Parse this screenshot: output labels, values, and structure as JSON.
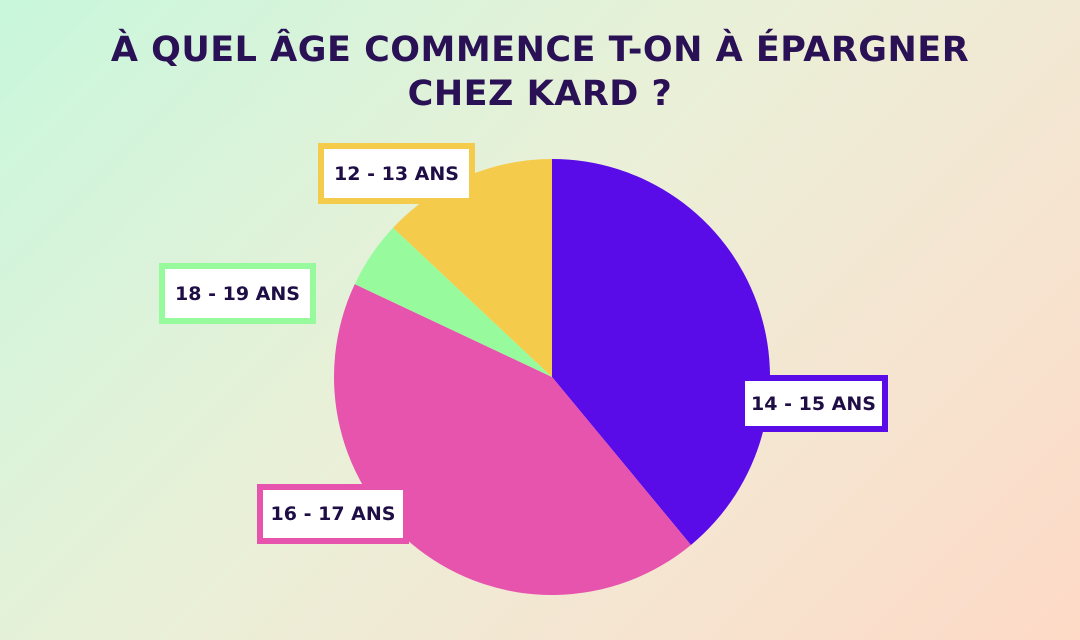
{
  "title": {
    "line1": "À QUEL ÂGE COMMENCE T-ON À ÉPARGNER",
    "line2": "CHEZ KARD ?"
  },
  "chart_data": {
    "type": "pie",
    "title": "À QUEL ÂGE COMMENCE T-ON À ÉPARGNER CHEZ KARD ?",
    "start_angle_deg": 0,
    "direction": "clockwise",
    "slices": [
      {
        "label": "14 - 15 ANS",
        "value": 39,
        "color": "#5a0ce8"
      },
      {
        "label": "16 - 17 ANS",
        "value": 43,
        "color": "#e654ae"
      },
      {
        "label": "18 - 19 ANS",
        "value": 5,
        "color": "#97fb9e"
      },
      {
        "label": "12 - 13 ANS",
        "value": 13,
        "color": "#f5cb4c"
      }
    ]
  }
}
